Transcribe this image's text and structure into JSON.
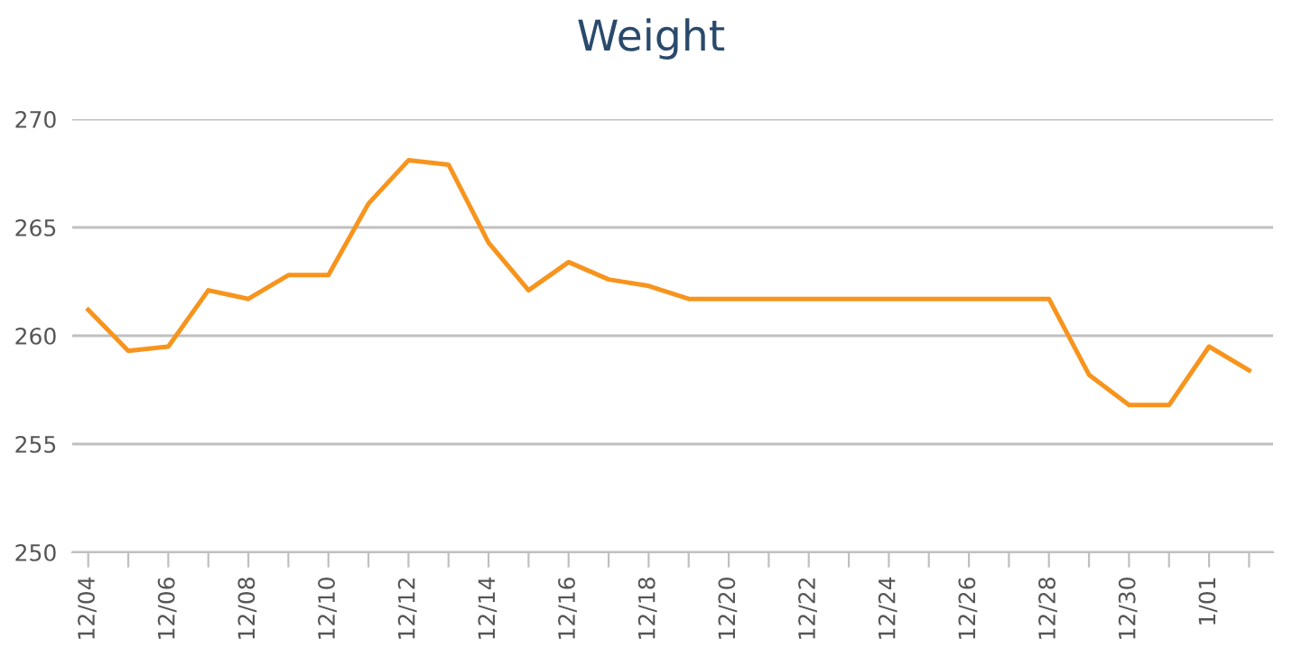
{
  "chart_data": {
    "type": "line",
    "title": "Weight",
    "categories": [
      "12/04",
      null,
      "12/06",
      null,
      "12/08",
      null,
      "12/10",
      null,
      "12/12",
      null,
      "12/14",
      null,
      "12/16",
      null,
      "12/18",
      null,
      "12/20",
      null,
      "12/22",
      null,
      "12/24",
      null,
      "12/26",
      null,
      "12/28",
      null,
      "12/30",
      null,
      "1/01",
      null
    ],
    "series": [
      {
        "color": "#f7941d",
        "values": [
          261.2,
          259.3,
          259.5,
          262.1,
          261.7,
          262.8,
          262.8,
          266.1,
          268.1,
          267.9,
          264.3,
          262.1,
          263.4,
          262.6,
          262.3,
          261.7,
          261.7,
          261.7,
          261.7,
          261.7,
          261.7,
          261.7,
          261.7,
          261.7,
          261.7,
          258.2,
          256.8,
          256.8,
          259.5,
          258.4
        ]
      }
    ],
    "ylim": [
      250,
      270
    ],
    "yticks": [
      250,
      255,
      260,
      265,
      270
    ],
    "grid": "y",
    "marker": "none",
    "line_style": "solid"
  }
}
